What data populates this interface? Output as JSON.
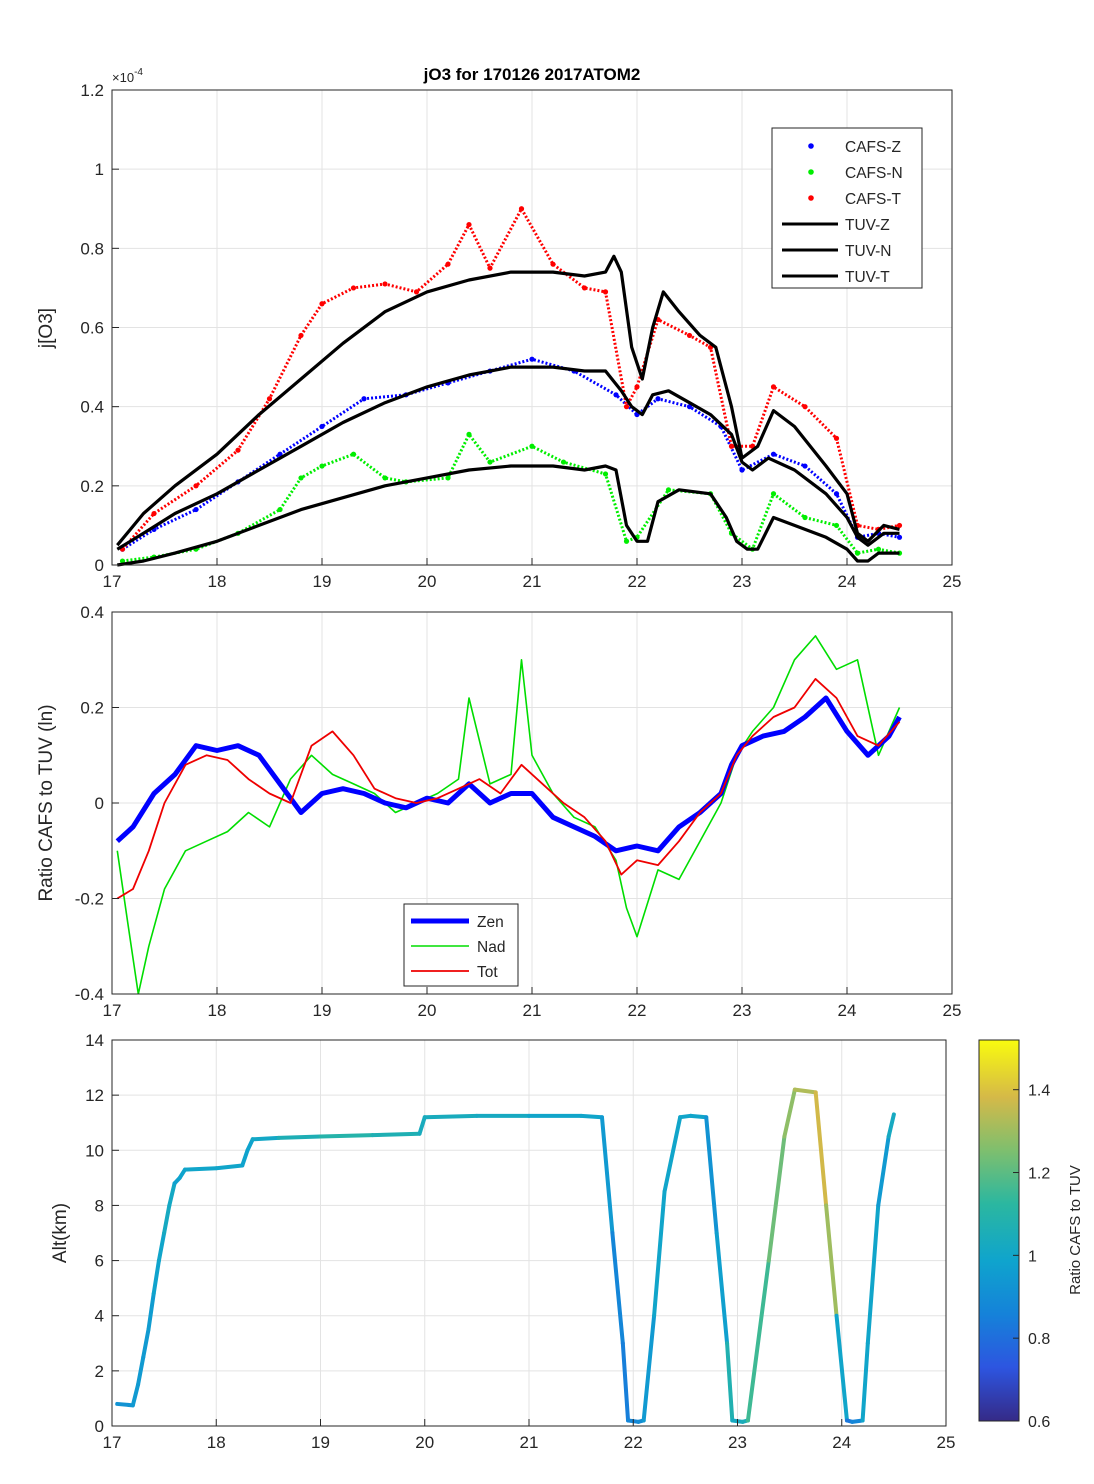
{
  "figure": {
    "title": "jO3 for 170126 2017ATOM2"
  },
  "chart_data": [
    {
      "type": "scatter",
      "name": "jo3-time-series",
      "title": "jO3 for 170126 2017ATOM2",
      "xlabel": "",
      "ylabel": "j[O3]",
      "exponent_label": "×10",
      "exponent_power": "-4",
      "xlim": [
        17,
        25
      ],
      "ylim": [
        0,
        1.2
      ],
      "xticks": [
        "17",
        "18",
        "19",
        "20",
        "21",
        "22",
        "23",
        "24",
        "25"
      ],
      "yticks": [
        "0",
        "0.2",
        "0.4",
        "0.6",
        "0.8",
        "1",
        "1.2"
      ],
      "grid": true,
      "legend_position": "top-right",
      "legend": [
        "CAFS-Z",
        "CAFS-N",
        "CAFS-T",
        "TUV-Z",
        "TUV-N",
        "TUV-T"
      ],
      "series": [
        {
          "name": "CAFS-Z",
          "style": "dots",
          "color": "#0000ff",
          "x": [
            17.1,
            17.4,
            17.8,
            18.2,
            18.6,
            19.0,
            19.4,
            19.8,
            20.2,
            20.6,
            21.0,
            21.4,
            21.8,
            22.0,
            22.2,
            22.5,
            22.8,
            23.0,
            23.3,
            23.6,
            23.9,
            24.1,
            24.3,
            24.5
          ],
          "y": [
            0.04,
            0.09,
            0.14,
            0.21,
            0.28,
            0.35,
            0.42,
            0.43,
            0.46,
            0.49,
            0.52,
            0.49,
            0.43,
            0.38,
            0.42,
            0.4,
            0.35,
            0.24,
            0.28,
            0.25,
            0.18,
            0.07,
            0.08,
            0.07
          ]
        },
        {
          "name": "CAFS-N",
          "style": "dots",
          "color": "#00ee00",
          "x": [
            17.1,
            17.4,
            17.8,
            18.2,
            18.6,
            18.8,
            19.0,
            19.3,
            19.6,
            19.8,
            20.2,
            20.4,
            20.6,
            21.0,
            21.3,
            21.7,
            21.9,
            22.0,
            22.3,
            22.7,
            22.9,
            23.1,
            23.3,
            23.6,
            23.9,
            24.1,
            24.3,
            24.5
          ],
          "y": [
            0.01,
            0.02,
            0.04,
            0.08,
            0.14,
            0.22,
            0.25,
            0.28,
            0.22,
            0.21,
            0.22,
            0.33,
            0.26,
            0.3,
            0.26,
            0.23,
            0.06,
            0.07,
            0.19,
            0.18,
            0.08,
            0.04,
            0.18,
            0.12,
            0.1,
            0.03,
            0.04,
            0.03
          ]
        },
        {
          "name": "CAFS-T",
          "style": "dots",
          "color": "#ff0000",
          "x": [
            17.1,
            17.4,
            17.8,
            18.2,
            18.5,
            18.8,
            19.0,
            19.3,
            19.6,
            19.9,
            20.2,
            20.4,
            20.6,
            20.9,
            21.2,
            21.5,
            21.7,
            21.9,
            22.0,
            22.2,
            22.5,
            22.7,
            22.9,
            23.1,
            23.3,
            23.6,
            23.9,
            24.1,
            24.3,
            24.5
          ],
          "y": [
            0.04,
            0.13,
            0.2,
            0.29,
            0.42,
            0.58,
            0.66,
            0.7,
            0.71,
            0.69,
            0.76,
            0.86,
            0.75,
            0.9,
            0.76,
            0.7,
            0.69,
            0.4,
            0.45,
            0.62,
            0.58,
            0.55,
            0.3,
            0.3,
            0.45,
            0.4,
            0.32,
            0.1,
            0.09,
            0.1
          ]
        },
        {
          "name": "TUV-Z",
          "style": "line",
          "color": "#000000",
          "x": [
            17.05,
            17.3,
            17.6,
            18.0,
            18.4,
            18.8,
            19.2,
            19.6,
            20.0,
            20.4,
            20.8,
            21.2,
            21.5,
            21.7,
            21.85,
            21.95,
            22.05,
            22.15,
            22.3,
            22.5,
            22.7,
            22.9,
            23.0,
            23.1,
            23.25,
            23.5,
            23.8,
            24.0,
            24.1,
            24.2,
            24.35,
            24.5
          ],
          "y": [
            0.04,
            0.08,
            0.13,
            0.18,
            0.24,
            0.3,
            0.36,
            0.41,
            0.45,
            0.48,
            0.5,
            0.5,
            0.49,
            0.49,
            0.44,
            0.4,
            0.38,
            0.43,
            0.44,
            0.41,
            0.38,
            0.33,
            0.26,
            0.24,
            0.27,
            0.24,
            0.18,
            0.12,
            0.07,
            0.05,
            0.08,
            0.08
          ]
        },
        {
          "name": "TUV-N",
          "style": "line",
          "color": "#000000",
          "x": [
            17.05,
            17.3,
            17.6,
            18.0,
            18.4,
            18.8,
            19.2,
            19.6,
            20.0,
            20.4,
            20.8,
            21.2,
            21.5,
            21.7,
            21.8,
            21.9,
            22.0,
            22.1,
            22.2,
            22.4,
            22.7,
            22.85,
            22.95,
            23.05,
            23.15,
            23.3,
            23.5,
            23.8,
            24.0,
            24.1,
            24.2,
            24.3,
            24.5
          ],
          "y": [
            0.0,
            0.01,
            0.03,
            0.06,
            0.1,
            0.14,
            0.17,
            0.2,
            0.22,
            0.24,
            0.25,
            0.25,
            0.24,
            0.25,
            0.24,
            0.1,
            0.06,
            0.06,
            0.16,
            0.19,
            0.18,
            0.12,
            0.06,
            0.04,
            0.04,
            0.12,
            0.1,
            0.07,
            0.04,
            0.01,
            0.01,
            0.03,
            0.03
          ]
        },
        {
          "name": "TUV-T",
          "style": "line",
          "color": "#000000",
          "x": [
            17.05,
            17.3,
            17.6,
            18.0,
            18.4,
            18.8,
            19.2,
            19.6,
            20.0,
            20.4,
            20.8,
            21.2,
            21.5,
            21.7,
            21.78,
            21.85,
            21.95,
            22.05,
            22.15,
            22.25,
            22.4,
            22.6,
            22.75,
            22.9,
            23.0,
            23.15,
            23.3,
            23.5,
            23.8,
            24.0,
            24.1,
            24.2,
            24.35,
            24.5
          ],
          "y": [
            0.05,
            0.13,
            0.2,
            0.28,
            0.38,
            0.47,
            0.56,
            0.64,
            0.69,
            0.72,
            0.74,
            0.74,
            0.73,
            0.74,
            0.78,
            0.74,
            0.55,
            0.47,
            0.6,
            0.69,
            0.64,
            0.58,
            0.55,
            0.4,
            0.27,
            0.3,
            0.39,
            0.35,
            0.25,
            0.18,
            0.08,
            0.06,
            0.1,
            0.09
          ]
        }
      ]
    },
    {
      "type": "line",
      "name": "ratio-time-series",
      "xlabel": "",
      "ylabel": "Ratio CAFS to TUV (ln)",
      "xlim": [
        17,
        25
      ],
      "ylim": [
        -0.4,
        0.4
      ],
      "xticks": [
        "17",
        "18",
        "19",
        "20",
        "21",
        "22",
        "23",
        "24",
        "25"
      ],
      "yticks": [
        "-0.4",
        "-0.2",
        "0",
        "0.2",
        "0.4"
      ],
      "grid": true,
      "legend_position": "bottom-center",
      "legend": [
        "Zen",
        "Nad",
        "Tot"
      ],
      "series": [
        {
          "name": "Zen",
          "color": "#0000ff",
          "x": [
            17.05,
            17.2,
            17.4,
            17.6,
            17.8,
            18.0,
            18.2,
            18.4,
            18.6,
            18.8,
            19.0,
            19.2,
            19.4,
            19.6,
            19.8,
            20.0,
            20.2,
            20.4,
            20.6,
            20.8,
            21.0,
            21.2,
            21.4,
            21.6,
            21.8,
            22.0,
            22.2,
            22.4,
            22.6,
            22.8,
            22.9,
            23.0,
            23.2,
            23.4,
            23.6,
            23.8,
            24.0,
            24.2,
            24.4,
            24.5
          ],
          "y": [
            -0.08,
            -0.05,
            0.02,
            0.06,
            0.12,
            0.11,
            0.12,
            0.1,
            0.04,
            -0.02,
            0.02,
            0.03,
            0.02,
            0.0,
            -0.01,
            0.01,
            0.0,
            0.04,
            0.0,
            0.02,
            0.02,
            -0.03,
            -0.05,
            -0.07,
            -0.1,
            -0.09,
            -0.1,
            -0.05,
            -0.02,
            0.02,
            0.08,
            0.12,
            0.14,
            0.15,
            0.18,
            0.22,
            0.15,
            0.1,
            0.14,
            0.18
          ]
        },
        {
          "name": "Nad",
          "color": "#00dd00",
          "x": [
            17.05,
            17.15,
            17.25,
            17.35,
            17.5,
            17.7,
            17.9,
            18.1,
            18.3,
            18.5,
            18.7,
            18.9,
            19.1,
            19.3,
            19.5,
            19.7,
            19.9,
            20.1,
            20.3,
            20.4,
            20.6,
            20.8,
            20.9,
            21.0,
            21.2,
            21.4,
            21.6,
            21.8,
            21.9,
            22.0,
            22.2,
            22.4,
            22.6,
            22.8,
            22.95,
            23.1,
            23.3,
            23.5,
            23.7,
            23.9,
            24.1,
            24.3,
            24.5
          ],
          "y": [
            -0.1,
            -0.25,
            -0.4,
            -0.3,
            -0.18,
            -0.1,
            -0.08,
            -0.06,
            -0.02,
            -0.05,
            0.05,
            0.1,
            0.06,
            0.04,
            0.02,
            -0.02,
            0.0,
            0.02,
            0.05,
            0.22,
            0.04,
            0.06,
            0.3,
            0.1,
            0.02,
            -0.03,
            -0.05,
            -0.12,
            -0.22,
            -0.28,
            -0.14,
            -0.16,
            -0.08,
            0.0,
            0.1,
            0.15,
            0.2,
            0.3,
            0.35,
            0.28,
            0.3,
            0.1,
            0.2
          ]
        },
        {
          "name": "Tot",
          "color": "#ee0000",
          "x": [
            17.05,
            17.2,
            17.35,
            17.5,
            17.7,
            17.9,
            18.1,
            18.3,
            18.5,
            18.7,
            18.9,
            19.1,
            19.3,
            19.5,
            19.7,
            19.9,
            20.1,
            20.3,
            20.5,
            20.7,
            20.9,
            21.1,
            21.3,
            21.5,
            21.7,
            21.85,
            22.0,
            22.2,
            22.4,
            22.6,
            22.8,
            22.95,
            23.1,
            23.3,
            23.5,
            23.7,
            23.9,
            24.1,
            24.3,
            24.5
          ],
          "y": [
            -0.2,
            -0.18,
            -0.1,
            0.0,
            0.08,
            0.1,
            0.09,
            0.05,
            0.02,
            0.0,
            0.12,
            0.15,
            0.1,
            0.03,
            0.01,
            0.0,
            0.01,
            0.03,
            0.05,
            0.02,
            0.08,
            0.04,
            0.0,
            -0.03,
            -0.08,
            -0.15,
            -0.12,
            -0.13,
            -0.08,
            -0.02,
            0.02,
            0.1,
            0.14,
            0.18,
            0.2,
            0.26,
            0.22,
            0.14,
            0.12,
            0.17
          ]
        }
      ]
    },
    {
      "type": "line",
      "name": "altitude-profile",
      "xlabel": "",
      "ylabel": "Alt(km)",
      "xlim": [
        17,
        25
      ],
      "ylim": [
        0,
        14
      ],
      "xticks": [
        "17",
        "18",
        "19",
        "20",
        "21",
        "22",
        "23",
        "24",
        "25"
      ],
      "yticks": [
        "0",
        "2",
        "4",
        "6",
        "8",
        "10",
        "12",
        "14"
      ],
      "grid": true,
      "colorbar": {
        "label": "Ratio CAFS to TUV",
        "range": [
          0.6,
          1.52
        ],
        "ticks": [
          "0.6",
          "0.8",
          "1",
          "1.2",
          "1.4"
        ]
      },
      "series": [
        {
          "name": "altitude",
          "x": [
            17.05,
            17.2,
            17.25,
            17.3,
            17.35,
            17.4,
            17.45,
            17.5,
            17.55,
            17.6,
            17.65,
            17.7,
            18.0,
            18.25,
            18.3,
            18.35,
            18.6,
            19.0,
            19.5,
            19.95,
            20.0,
            20.5,
            21.0,
            21.5,
            21.7,
            21.8,
            21.9,
            21.95,
            22.05,
            22.1,
            22.2,
            22.3,
            22.45,
            22.55,
            22.7,
            22.8,
            22.9,
            22.95,
            23.05,
            23.1,
            23.3,
            23.45,
            23.55,
            23.75,
            23.85,
            23.95,
            24.05,
            24.1,
            24.2,
            24.25,
            24.35,
            24.45,
            24.5
          ],
          "y": [
            0.8,
            0.75,
            1.5,
            2.5,
            3.5,
            4.8,
            6.0,
            7.0,
            8.0,
            8.8,
            9.0,
            9.3,
            9.35,
            9.45,
            10.0,
            10.4,
            10.45,
            10.5,
            10.55,
            10.6,
            11.2,
            11.25,
            11.25,
            11.25,
            11.2,
            7.0,
            3.0,
            0.2,
            0.15,
            0.2,
            4.0,
            8.5,
            11.2,
            11.25,
            11.2,
            7.0,
            3.0,
            0.2,
            0.15,
            0.2,
            6.0,
            10.5,
            12.2,
            12.1,
            8.0,
            4.0,
            0.2,
            0.15,
            0.2,
            3.0,
            8.0,
            10.5,
            11.3
          ],
          "ratio": [
            0.9,
            0.95,
            0.95,
            0.95,
            0.95,
            0.97,
            1.0,
            1.0,
            1.05,
            0.98,
            0.98,
            1.0,
            1.0,
            1.0,
            0.97,
            1.0,
            1.02,
            1.1,
            1.08,
            1.05,
            1.02,
            1.05,
            1.0,
            1.0,
            1.0,
            0.9,
            0.85,
            0.85,
            0.9,
            0.9,
            1.0,
            1.0,
            1.0,
            1.0,
            1.0,
            0.85,
            1.1,
            1.05,
            1.0,
            1.1,
            1.2,
            1.25,
            1.3,
            1.35,
            1.4,
            1.2,
            0.8,
            0.85,
            0.9,
            1.1,
            0.9,
            1.0,
            1.05
          ]
        }
      ]
    }
  ]
}
